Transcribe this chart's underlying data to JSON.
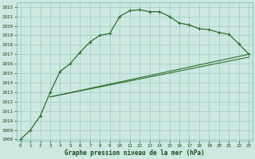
{
  "title": "Graphe pression niveau de la mer (hPa)",
  "bg_color": "#cce8e0",
  "grid_color": "#a0c8c0",
  "line_color": "#2d6e2d",
  "xlim_min": -0.4,
  "xlim_max": 23.4,
  "ylim_min": 1007.85,
  "ylim_max": 1022.5,
  "xticks": [
    0,
    1,
    2,
    3,
    4,
    5,
    6,
    7,
    8,
    9,
    10,
    11,
    12,
    13,
    14,
    15,
    16,
    17,
    18,
    19,
    20,
    21,
    22,
    23
  ],
  "yticks": [
    1008,
    1009,
    1010,
    1011,
    1012,
    1013,
    1014,
    1015,
    1016,
    1017,
    1018,
    1019,
    1020,
    1021,
    1022
  ],
  "line1_x": [
    0,
    1,
    2,
    3,
    4,
    5,
    6,
    7,
    8,
    9,
    10,
    11,
    12,
    13,
    14,
    15,
    16,
    17,
    18,
    19,
    20,
    21,
    22,
    23
  ],
  "line1_y": [
    1008.0,
    1009.0,
    1010.5,
    1013.0,
    1015.2,
    1016.0,
    1017.2,
    1018.3,
    1019.0,
    1019.2,
    1021.0,
    1021.6,
    1021.7,
    1021.5,
    1021.5,
    1021.0,
    1020.3,
    1020.1,
    1019.7,
    1019.6,
    1019.3,
    1019.1,
    1018.1,
    1017.0
  ],
  "line2_x": [
    3,
    23
  ],
  "line2_y": [
    1012.5,
    1017.0
  ],
  "line3_x": [
    3,
    23
  ],
  "line3_y": [
    1012.5,
    1016.7
  ]
}
